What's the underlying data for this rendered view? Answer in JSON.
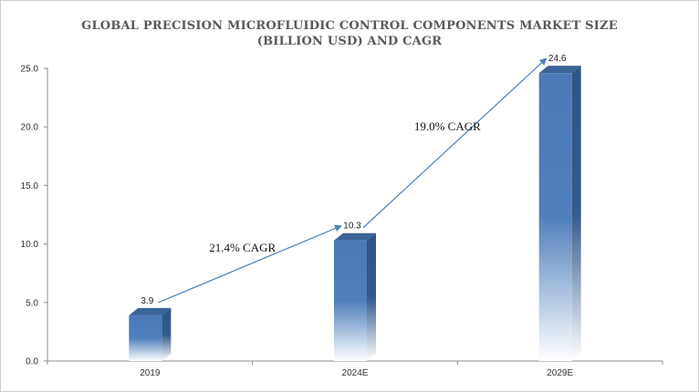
{
  "chart_data": {
    "type": "bar",
    "title_line1": "GLOBAL PRECISION MICROFLUIDIC CONTROL COMPONENTS MARKET SIZE",
    "title_line2": "(BILLION USD) AND CAGR",
    "categories": [
      "2019",
      "2024E",
      "2029E"
    ],
    "values": [
      3.9,
      10.3,
      24.6
    ],
    "value_labels": [
      "3.9",
      "10.3",
      "24.6"
    ],
    "ylim": [
      0,
      25
    ],
    "yticks": [
      "0.0",
      "5.0",
      "10.0",
      "15.0",
      "20.0",
      "25.0"
    ],
    "grid": false,
    "annotations": [
      {
        "text": "21.4% CAGR",
        "from": "2019",
        "to": "2024E"
      },
      {
        "text": "19.0% CAGR",
        "from": "2024E",
        "to": "2029E"
      }
    ],
    "colors": {
      "bar_front": "#4a7ab8",
      "bar_side": "#2f5586",
      "bar_top": "#3b6497",
      "arrow": "#4f81bd",
      "axis": "#8c8c8c"
    }
  }
}
